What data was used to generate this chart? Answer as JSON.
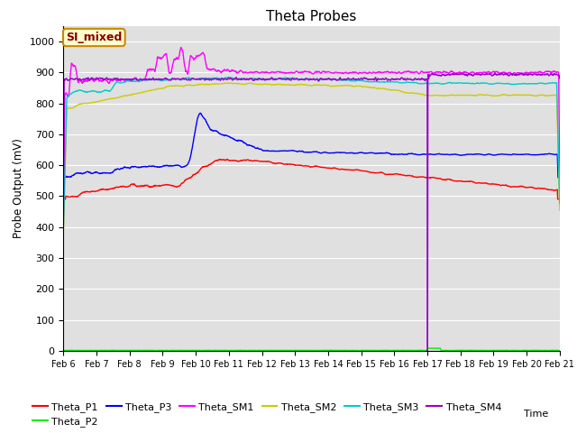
{
  "title": "Theta Probes",
  "ylabel": "Probe Output (mV)",
  "ylim": [
    0,
    1050
  ],
  "yticks": [
    0,
    100,
    200,
    300,
    400,
    500,
    600,
    700,
    800,
    900,
    1000
  ],
  "bg_color": "#e0e0e0",
  "annotation_text": "SI_mixed",
  "annotation_bg": "#ffffcc",
  "annotation_border": "#cc8800",
  "annotation_text_color": "#880000",
  "line_colors": {
    "Theta_P1": "#ff0000",
    "Theta_P2": "#00ee00",
    "Theta_P3": "#0000ff",
    "Theta_SM1": "#ff00ff",
    "Theta_SM2": "#cccc00",
    "Theta_SM3": "#00cccc",
    "Theta_SM4": "#9900cc"
  },
  "x_labels": [
    "Feb 6",
    "Feb 7",
    "Feb 8",
    "Feb 9",
    "Feb 10",
    "Feb 11",
    "Feb 12",
    "Feb 13",
    "Feb 14",
    "Feb 15",
    "Feb 16",
    "Feb 17",
    "Feb 18",
    "Feb 19",
    "Feb 20",
    "Feb 21"
  ]
}
